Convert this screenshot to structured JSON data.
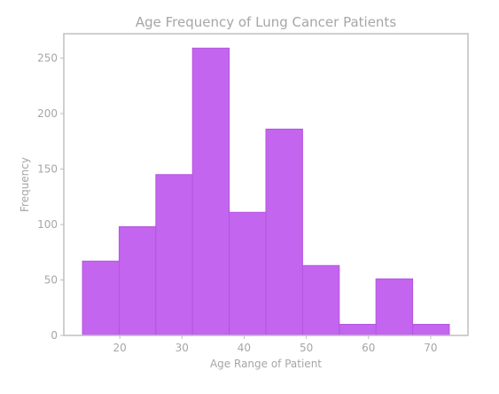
{
  "colors": {
    "bar_fill": "#c465f0",
    "bar_edge": "#b455e0",
    "text": "#a6a6a6",
    "frame": "#bfbfbf"
  },
  "chart_data": {
    "type": "bar",
    "title": "Age Frequency of Lung Cancer Patients",
    "xlabel": "Age Range of Patient",
    "ylabel": "Frequency",
    "bin_edges": [
      14,
      19.9,
      25.8,
      31.7,
      37.6,
      43.5,
      49.4,
      55.3,
      61.2,
      67.1,
      73
    ],
    "values": [
      67,
      98,
      145,
      259,
      111,
      186,
      63,
      10,
      51,
      10
    ],
    "xlim": [
      11,
      76
    ],
    "ylim": [
      0,
      272
    ],
    "xticks": [
      20,
      30,
      40,
      50,
      60,
      70
    ],
    "yticks": [
      0,
      50,
      100,
      150,
      200,
      250
    ],
    "grid": false
  }
}
